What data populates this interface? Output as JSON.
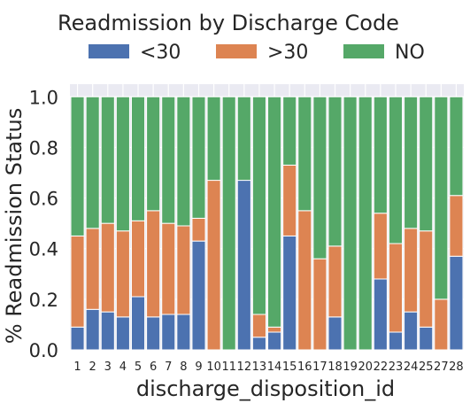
{
  "chart_data": {
    "type": "bar",
    "stacked": true,
    "title": "Readmission by Discharge Code",
    "xlabel": "discharge_disposition_id",
    "ylabel": "% Readmission Status",
    "ylim": [
      0,
      1.05
    ],
    "yticks": [
      "0.0",
      "0.2",
      "0.4",
      "0.6",
      "0.8",
      "1.0"
    ],
    "grid": true,
    "legend_position": "top",
    "categories": [
      "1",
      "2",
      "3",
      "4",
      "5",
      "6",
      "7",
      "8",
      "9",
      "10",
      "11",
      "12",
      "13",
      "14",
      "15",
      "16",
      "17",
      "18",
      "19",
      "20",
      "22",
      "23",
      "24",
      "25",
      "27",
      "28"
    ],
    "series": [
      {
        "name": "<30",
        "color": "#4c72b0",
        "values": [
          0.09,
          0.16,
          0.15,
          0.13,
          0.21,
          0.13,
          0.14,
          0.14,
          0.43,
          0.0,
          0.0,
          0.67,
          0.05,
          0.07,
          0.45,
          0.0,
          0.0,
          0.13,
          0.0,
          0.0,
          0.28,
          0.07,
          0.15,
          0.09,
          0.0,
          0.37
        ]
      },
      {
        "name": ">30",
        "color": "#dd8452",
        "values": [
          0.36,
          0.32,
          0.35,
          0.34,
          0.3,
          0.42,
          0.36,
          0.35,
          0.09,
          0.67,
          0.0,
          0.0,
          0.09,
          0.02,
          0.28,
          0.55,
          0.36,
          0.28,
          0.0,
          0.0,
          0.26,
          0.35,
          0.33,
          0.38,
          0.2,
          0.24
        ]
      },
      {
        "name": "NO",
        "color": "#55a868",
        "values": [
          0.55,
          0.52,
          0.5,
          0.53,
          0.49,
          0.45,
          0.5,
          0.51,
          0.48,
          0.33,
          1.0,
          0.33,
          0.86,
          0.91,
          0.27,
          0.45,
          0.64,
          0.59,
          1.0,
          1.0,
          0.46,
          0.58,
          0.52,
          0.53,
          0.8,
          0.39
        ]
      }
    ]
  }
}
